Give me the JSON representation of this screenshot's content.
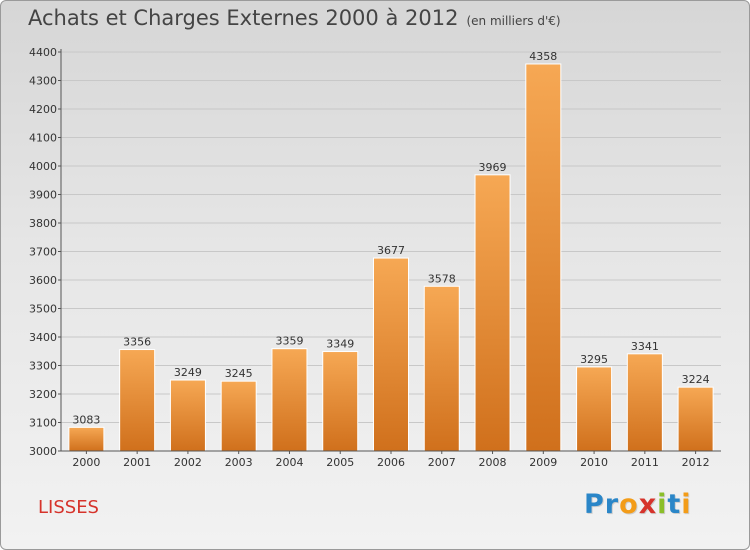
{
  "title": "Achats et Charges Externes 2000 à 2012",
  "unit": "(en milliers d'€)",
  "location": "LISSES",
  "logo": {
    "letters": [
      {
        "char": "P",
        "color": "#2a86c8"
      },
      {
        "char": "r",
        "color": "#2a86c8"
      },
      {
        "char": "o",
        "color": "#f39c18"
      },
      {
        "char": "x",
        "color": "#d6332b"
      },
      {
        "char": "i",
        "color": "#8bbf2a"
      },
      {
        "char": "t",
        "color": "#2a86c8"
      },
      {
        "char": "i",
        "color": "#f39c18"
      }
    ]
  },
  "colors": {
    "bar_top": "#f6a854",
    "bar_bottom": "#d0701c",
    "grid": "#c8c8c8",
    "axis": "#555555"
  },
  "chart_data": {
    "type": "bar",
    "title": "Achats et Charges Externes 2000 à 2012",
    "ylabel": "(en milliers d'€)",
    "xlabel": "",
    "categories": [
      "2000",
      "2001",
      "2002",
      "2003",
      "2004",
      "2005",
      "2006",
      "2007",
      "2008",
      "2009",
      "2010",
      "2011",
      "2012"
    ],
    "values": [
      3083,
      3356,
      3249,
      3245,
      3359,
      3349,
      3677,
      3578,
      3969,
      4358,
      3295,
      3341,
      3224
    ],
    "ylim": [
      3000,
      4400
    ],
    "yticks": [
      3000,
      3100,
      3200,
      3300,
      3400,
      3500,
      3600,
      3700,
      3800,
      3900,
      4000,
      4100,
      4200,
      4300,
      4400
    ],
    "grid": true,
    "legend": "none"
  }
}
